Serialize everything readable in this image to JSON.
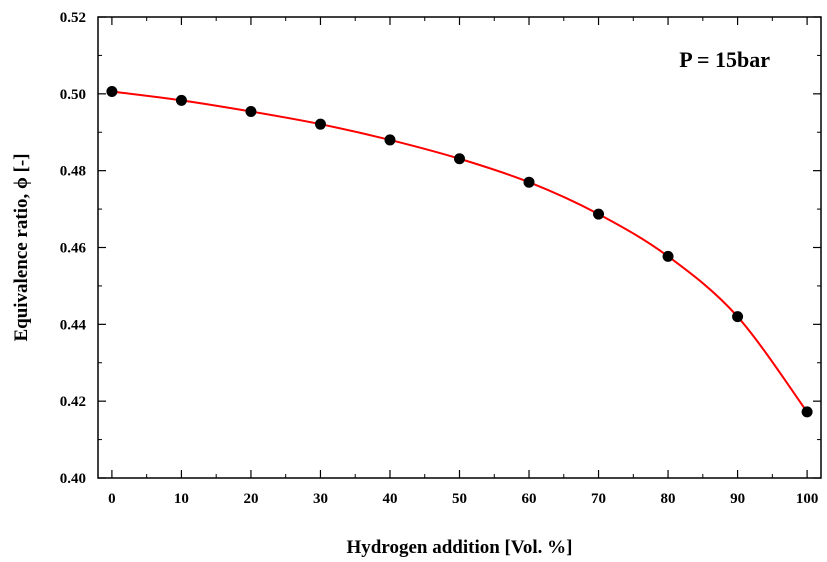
{
  "chart_data": {
    "type": "line",
    "title": "",
    "xlabel": "Hydrogen addition [Vol. %]",
    "ylabel": "Equivalence ratio, ϕ [-]",
    "annotation": "P = 15bar",
    "xlim": [
      -2,
      102
    ],
    "ylim": [
      0.4,
      0.52
    ],
    "xticks": [
      0,
      10,
      20,
      30,
      40,
      50,
      60,
      70,
      80,
      90,
      100
    ],
    "xtick_labels": [
      "0",
      "10",
      "20",
      "30",
      "40",
      "50",
      "60",
      "70",
      "80",
      "90",
      "100"
    ],
    "yticks": [
      0.4,
      0.42,
      0.44,
      0.46,
      0.48,
      0.5,
      0.52
    ],
    "ytick_labels": [
      "0.40",
      "0.42",
      "0.44",
      "0.46",
      "0.48",
      "0.50",
      "0.52"
    ],
    "grid": false,
    "series": [
      {
        "x": [
          0,
          10,
          20,
          30,
          40,
          50,
          60,
          70,
          80,
          90,
          100
        ],
        "y": [
          0.5006,
          0.4983,
          0.4954,
          0.4921,
          0.488,
          0.4831,
          0.477,
          0.4687,
          0.4577,
          0.442,
          0.4172
        ],
        "marker_color": "#000000",
        "line_color": "#ff0000"
      }
    ]
  }
}
